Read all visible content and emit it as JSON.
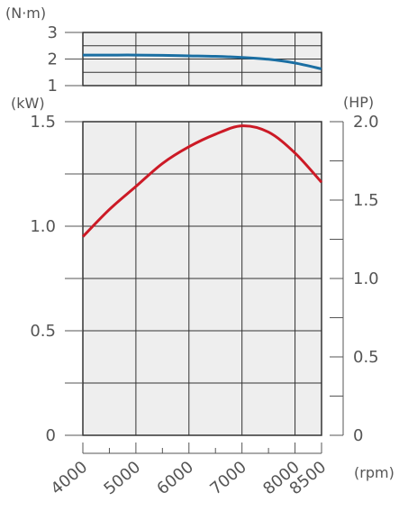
{
  "chart_data": [
    {
      "type": "line",
      "name": "torque",
      "ylabel": "(N·m)",
      "ylim": [
        1,
        3
      ],
      "yticks": [
        "1",
        "2",
        "3"
      ],
      "xlim": [
        4000,
        8500
      ],
      "x": [
        4000,
        4500,
        5000,
        5500,
        6000,
        6500,
        7000,
        7500,
        8000,
        8500
      ],
      "series": [
        {
          "values": [
            2.15,
            2.15,
            2.15,
            2.14,
            2.12,
            2.1,
            2.06,
            1.99,
            1.85,
            1.63
          ],
          "color": "#1b6fa3"
        }
      ],
      "grid": true
    },
    {
      "type": "line",
      "name": "power",
      "ylabel_left": "(kW)",
      "ylabel_right": "(HP)",
      "xlabel": "(rpm)",
      "ylim": [
        0,
        1.5
      ],
      "ylim_right": [
        0,
        2.0
      ],
      "yticks_left": [
        "0",
        "0.5",
        "1.0",
        "1.5"
      ],
      "yticks_right": [
        "0",
        "0.5",
        "1.0",
        "1.5",
        "2.0"
      ],
      "xlim": [
        4000,
        8500
      ],
      "xticks": [
        "4000",
        "5000",
        "6000",
        "7000",
        "8000",
        "8500"
      ],
      "x": [
        4000,
        4500,
        5000,
        5500,
        6000,
        6500,
        7000,
        7500,
        8000,
        8500
      ],
      "series": [
        {
          "values": [
            0.95,
            1.08,
            1.19,
            1.3,
            1.38,
            1.44,
            1.48,
            1.45,
            1.35,
            1.21
          ],
          "color": "#cc1a26"
        }
      ],
      "grid": true
    }
  ]
}
